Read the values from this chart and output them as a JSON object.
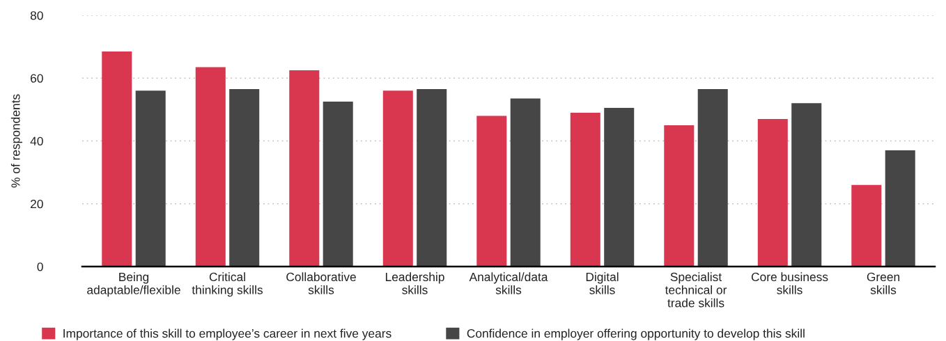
{
  "chart_data": {
    "type": "bar",
    "ylabel": "% of respondents",
    "categories": [
      "Being\nadaptable/flexible",
      "Critical\nthinking skills",
      "Collaborative\nskills",
      "Leadership\nskills",
      "Analytical/data\nskills",
      "Digital\nskills",
      "Specialist\ntechnical or\ntrade skills",
      "Core business\nskills",
      "Green\nskills"
    ],
    "series": [
      {
        "name": "Importance of this skill to employee’s career in next five years",
        "color": "#d9374f",
        "values": [
          68.5,
          63.5,
          62.5,
          56,
          48,
          49,
          45,
          47,
          26
        ]
      },
      {
        "name": "Confidence in employer offering opportunity to develop this skill",
        "color": "#464646",
        "values": [
          56,
          56.5,
          52.5,
          56.5,
          53.5,
          50.5,
          56.5,
          52,
          37
        ]
      }
    ],
    "ylim": [
      0,
      80
    ],
    "yticks": [
      0,
      20,
      40,
      60,
      80
    ],
    "grid": "y",
    "legend": "bottom"
  }
}
